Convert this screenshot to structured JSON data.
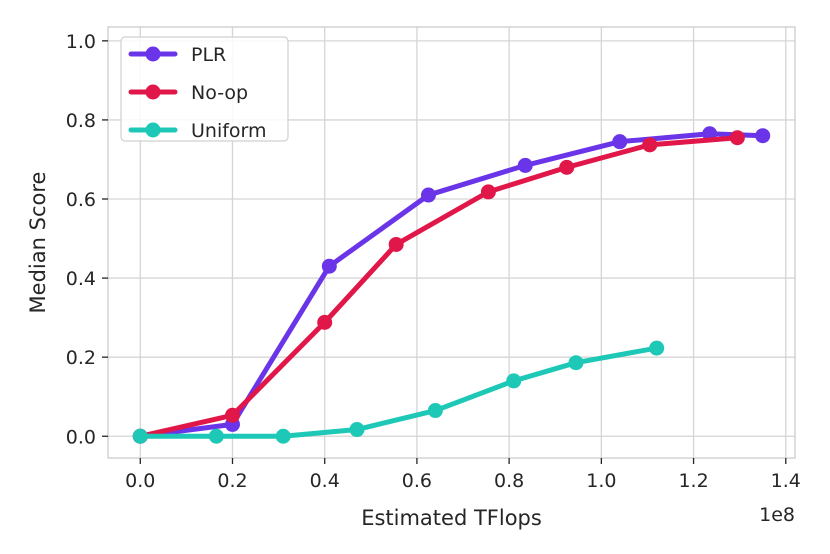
{
  "chart_data": {
    "type": "line",
    "xlabel": "Estimated TFlops",
    "ylabel": "Median Score",
    "x_offset_label": "1e8",
    "xlim": [
      -0.07,
      1.42
    ],
    "ylim": [
      -0.055,
      1.035
    ],
    "xticks": [
      "0.0",
      "0.2",
      "0.4",
      "0.6",
      "0.8",
      "1.0",
      "1.2",
      "1.4"
    ],
    "yticks": [
      "0.0",
      "0.2",
      "0.4",
      "0.6",
      "0.8",
      "1.0"
    ],
    "grid": true,
    "legend_position": "top-left",
    "series": [
      {
        "name": "PLR",
        "color": "#6a35e8",
        "x": [
          0.0,
          0.2,
          0.41,
          0.625,
          0.835,
          1.04,
          1.235,
          1.35
        ],
        "y": [
          0.0,
          0.03,
          0.43,
          0.61,
          0.685,
          0.745,
          0.765,
          0.76
        ]
      },
      {
        "name": "No-op",
        "color": "#e01748",
        "x": [
          0.0,
          0.2,
          0.4,
          0.555,
          0.755,
          0.925,
          1.105,
          1.295
        ],
        "y": [
          0.0,
          0.053,
          0.288,
          0.485,
          0.618,
          0.68,
          0.737,
          0.755
        ]
      },
      {
        "name": "Uniform",
        "color": "#1ec8b6",
        "x": [
          0.0,
          0.165,
          0.31,
          0.47,
          0.64,
          0.81,
          0.945,
          1.12
        ],
        "y": [
          0.0,
          0.0,
          0.0,
          0.017,
          0.065,
          0.14,
          0.186,
          0.223
        ]
      }
    ]
  }
}
